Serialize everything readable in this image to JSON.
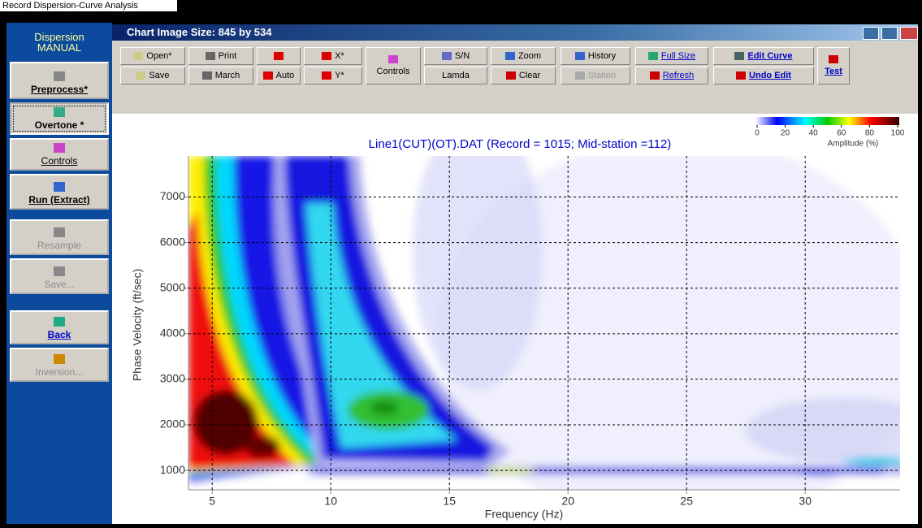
{
  "window": {
    "tab_title": "Record Dispersion-Curve Analysis",
    "chart_window_title": "Chart Image Size: 845 by 534"
  },
  "sidebar": {
    "title": "Dispersion",
    "mode": "MANUAL",
    "buttons": [
      {
        "label": "Preprocess*",
        "enabled": true
      },
      {
        "label": "Overtone *",
        "enabled": true
      },
      {
        "label": "Controls",
        "enabled": true
      },
      {
        "label": "Run (Extract)",
        "enabled": true
      },
      {
        "label": "Resample",
        "enabled": false
      },
      {
        "label": "Save...",
        "enabled": false
      },
      {
        "label": "Back",
        "enabled": true
      },
      {
        "label": "Inversion...",
        "enabled": false
      }
    ]
  },
  "toolbar": {
    "buttons": [
      "Open*",
      "Save",
      "Print",
      "March",
      "Auto",
      "X*",
      "Y*",
      "Controls",
      "S/N",
      "Lamda",
      "Zoom",
      "Clear",
      "History",
      "Station",
      "Full Size",
      "Refresh",
      "Edit Curve",
      "Undo Edit",
      "Test"
    ]
  },
  "chart_data": {
    "type": "heatmap",
    "title": "Line1(CUT)(OT).DAT  (Record = 1015; Mid-station =112)",
    "xlabel": "Frequency (Hz)",
    "ylabel": "Phase Velocity (ft/sec)",
    "xlim": [
      4,
      34
    ],
    "xticks": [
      5,
      10,
      15,
      20,
      25,
      30
    ],
    "ylim": [
      575,
      7900
    ],
    "yticks": [
      1000,
      2000,
      3000,
      4000,
      5000,
      6000,
      7000
    ],
    "grid": true,
    "colorbar": {
      "label": "Amplitude (%)",
      "lim": [
        0,
        100
      ],
      "ticks": [
        0,
        20,
        40,
        60,
        80,
        100
      ]
    }
  }
}
